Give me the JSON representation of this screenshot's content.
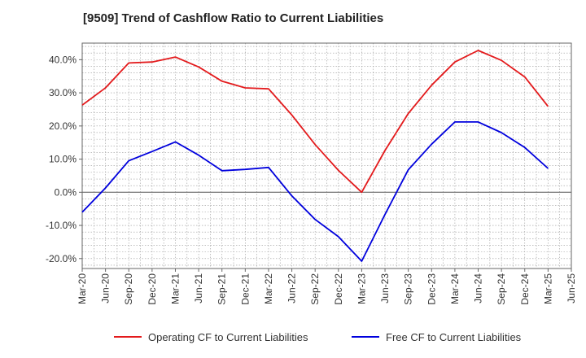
{
  "chart_data": {
    "type": "line",
    "title": "[9509]  Trend of Cashflow Ratio to Current Liabilities",
    "xlabel": "",
    "ylabel": "",
    "categories": [
      "Mar-20",
      "Jun-20",
      "Sep-20",
      "Dec-20",
      "Mar-21",
      "Jun-21",
      "Sep-21",
      "Dec-21",
      "Mar-22",
      "Jun-22",
      "Sep-22",
      "Dec-22",
      "Mar-23",
      "Jun-23",
      "Sep-23",
      "Dec-23",
      "Mar-24",
      "Jun-24",
      "Sep-24",
      "Dec-24",
      "Mar-25",
      "Jun-25"
    ],
    "ylim": [
      -23,
      45
    ],
    "yticks": [
      -20,
      -10,
      0,
      10,
      20,
      30,
      40
    ],
    "ytick_labels": [
      "-20.0%",
      "-10.0%",
      "0.0%",
      "10.0%",
      "20.0%",
      "30.0%",
      "40.0%"
    ],
    "grid": true,
    "legend_position": "bottom",
    "series": [
      {
        "name": "Operating CF to Current Liabilities",
        "color": "#e31a1c",
        "values": [
          26.3,
          31.5,
          39.0,
          39.3,
          40.8,
          37.8,
          33.5,
          31.5,
          31.2,
          23.3,
          14.4,
          6.6,
          0.0,
          12.6,
          23.8,
          32.3,
          39.3,
          42.8,
          39.8,
          34.8,
          25.9,
          null
        ]
      },
      {
        "name": "Free CF to Current Liabilities",
        "color": "#0000dd",
        "values": [
          -6.0,
          1.3,
          9.5,
          12.3,
          15.2,
          11.2,
          6.5,
          6.9,
          7.5,
          -1.1,
          -8.2,
          -13.4,
          -20.8,
          -6.7,
          6.8,
          14.5,
          21.2,
          21.2,
          18.0,
          13.5,
          7.2,
          null
        ]
      }
    ]
  }
}
